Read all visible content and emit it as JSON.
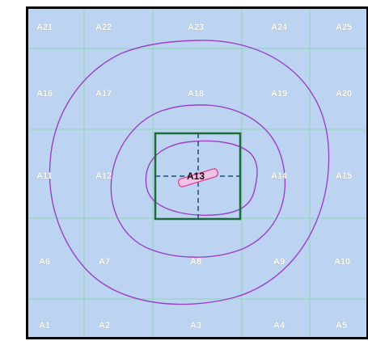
{
  "grid": {
    "rows": [
      [
        "A21",
        "A22",
        "A23",
        "A24",
        "A25"
      ],
      [
        "A16",
        "A17",
        "A18",
        "A19",
        "A20"
      ],
      [
        "A11",
        "A12",
        "A13",
        "A14",
        "A15"
      ],
      [
        "A6",
        "A7",
        "A8",
        "A9",
        "A10"
      ],
      [
        "A1",
        "A2",
        "A3",
        "A4",
        "A5"
      ]
    ],
    "center_cell": "A13"
  },
  "colors": {
    "background": "#bcd4f2",
    "frame": "#000000",
    "grid_line": "#8fd6b6",
    "contour": "#9b3fc8",
    "square": "#1d6b3a",
    "center_mark": "#e0338f"
  }
}
